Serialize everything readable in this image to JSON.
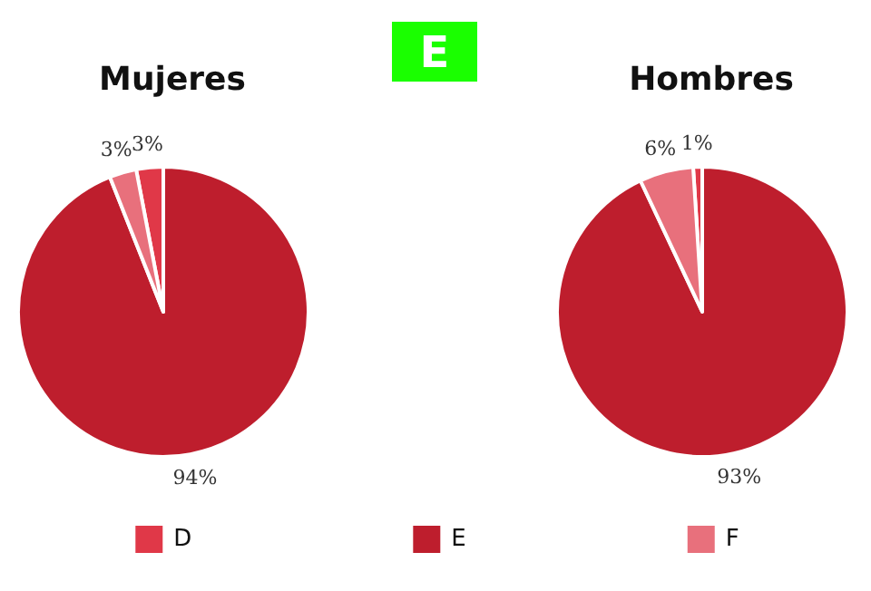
{
  "chart_data": {
    "type": "pie",
    "title": "E",
    "categories": [
      "D",
      "E",
      "F"
    ],
    "colors": [
      "#e03848",
      "#be1e2d",
      "#e8707c"
    ],
    "legend": "bottom",
    "series": [
      {
        "name": "Mujeres",
        "values": [
          3,
          94,
          3
        ],
        "value_labels": [
          "3%",
          "94%",
          "3%"
        ]
      },
      {
        "name": "Hombres",
        "values": [
          1,
          93,
          6
        ],
        "value_labels": [
          "1%",
          "93%",
          "6%"
        ]
      }
    ]
  }
}
